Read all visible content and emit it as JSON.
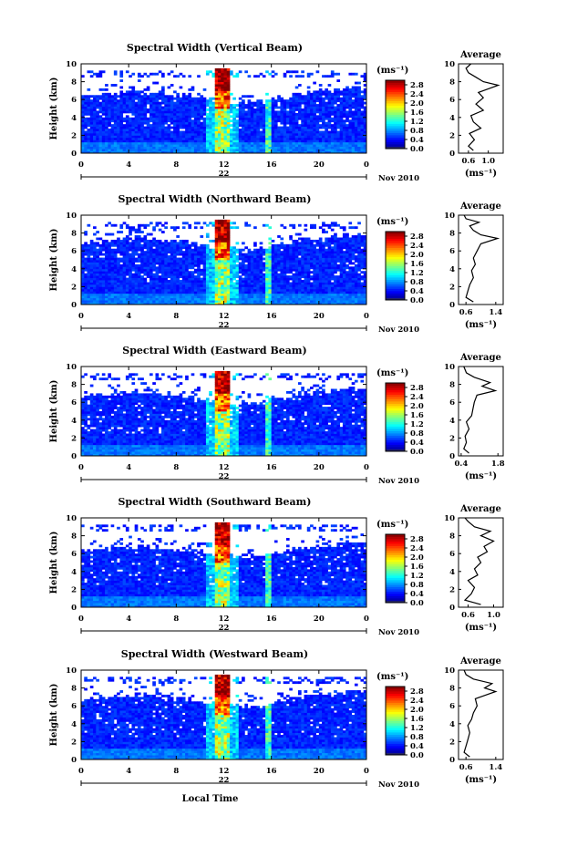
{
  "chart_data": [
    {
      "type": "heatmap",
      "title": "Spectral Width (Vertical Beam)",
      "ylabel": "Height (km)",
      "xlim": [
        0,
        24
      ],
      "ylim": [
        0,
        10
      ],
      "x_ticks": [
        "0",
        "4",
        "8",
        "12",
        "16",
        "20",
        "0"
      ],
      "y_ticks": [
        "0",
        "2",
        "4",
        "6",
        "8",
        "10"
      ],
      "date_label": "22",
      "month_label": "Nov 2010",
      "colorbar": {
        "unit": "(ms⁻¹)",
        "ticks": [
          "0.0",
          "0.4",
          "0.8",
          "1.2",
          "1.6",
          "2.0",
          "2.4",
          "2.8"
        ],
        "range": [
          0,
          3.0
        ]
      },
      "avg": {
        "title": "Average",
        "xlabel": "(ms⁻¹)",
        "x_ticks": [
          "0.6",
          "1.0"
        ],
        "xlim": [
          0.4,
          1.3
        ],
        "ylim": [
          0,
          10
        ],
        "y_ticks": [
          "0",
          "2",
          "4",
          "6",
          "8",
          "10"
        ],
        "profile": [
          [
            0.7,
            0.3
          ],
          [
            0.6,
            0.8
          ],
          [
            0.72,
            1.5
          ],
          [
            0.62,
            2.2
          ],
          [
            0.85,
            2.8
          ],
          [
            0.7,
            3.5
          ],
          [
            0.65,
            4.2
          ],
          [
            0.9,
            4.8
          ],
          [
            0.75,
            5.5
          ],
          [
            0.9,
            6.2
          ],
          [
            0.8,
            6.8
          ],
          [
            1.0,
            7.2
          ],
          [
            1.2,
            7.6
          ],
          [
            0.9,
            8.0
          ],
          [
            0.75,
            8.5
          ],
          [
            0.6,
            9.0
          ],
          [
            0.55,
            9.5
          ],
          [
            0.65,
            10
          ]
        ]
      }
    },
    {
      "type": "heatmap",
      "title": "Spectral Width (Northward Beam)",
      "ylabel": "Height (km)",
      "xlim": [
        0,
        24
      ],
      "ylim": [
        0,
        10
      ],
      "x_ticks": [
        "0",
        "4",
        "8",
        "12",
        "16",
        "20",
        "0"
      ],
      "y_ticks": [
        "0",
        "2",
        "4",
        "6",
        "8",
        "10"
      ],
      "date_label": "22",
      "month_label": "Nov 2010",
      "colorbar": {
        "unit": "(ms⁻¹)",
        "ticks": [
          "0.0",
          "0.4",
          "0.8",
          "1.2",
          "1.6",
          "2.0",
          "2.4",
          "2.8"
        ],
        "range": [
          0,
          3.0
        ]
      },
      "avg": {
        "title": "Average",
        "xlabel": "(ms⁻¹)",
        "x_ticks": [
          "0.6",
          "1.4"
        ],
        "xlim": [
          0.4,
          1.6
        ],
        "ylim": [
          0,
          10
        ],
        "y_ticks": [
          "0",
          "2",
          "4",
          "6",
          "8",
          "10"
        ],
        "profile": [
          [
            0.8,
            0.3
          ],
          [
            0.6,
            0.8
          ],
          [
            0.65,
            1.5
          ],
          [
            0.7,
            2.2
          ],
          [
            0.8,
            3.0
          ],
          [
            0.75,
            3.8
          ],
          [
            0.85,
            4.5
          ],
          [
            0.8,
            5.2
          ],
          [
            0.9,
            6.0
          ],
          [
            1.0,
            6.8
          ],
          [
            1.45,
            7.4
          ],
          [
            1.0,
            7.8
          ],
          [
            0.8,
            8.3
          ],
          [
            0.7,
            8.8
          ],
          [
            0.95,
            9.2
          ],
          [
            0.6,
            9.6
          ],
          [
            0.55,
            10
          ]
        ]
      }
    },
    {
      "type": "heatmap",
      "title": "Spectral Width (Eastward Beam)",
      "ylabel": "Height (km)",
      "xlim": [
        0,
        24
      ],
      "ylim": [
        0,
        10
      ],
      "x_ticks": [
        "0",
        "4",
        "8",
        "12",
        "16",
        "20",
        "0"
      ],
      "y_ticks": [
        "0",
        "2",
        "4",
        "6",
        "8",
        "10"
      ],
      "date_label": "22",
      "month_label": "Nov 2010",
      "colorbar": {
        "unit": "(ms⁻¹)",
        "ticks": [
          "0.0",
          "0.4",
          "0.8",
          "1.2",
          "1.6",
          "2.0",
          "2.4",
          "2.8"
        ],
        "range": [
          0,
          3.0
        ]
      },
      "avg": {
        "title": "Average",
        "xlabel": "(ms⁻¹)",
        "x_ticks": [
          "0.4",
          "1.8"
        ],
        "xlim": [
          0.3,
          2.0
        ],
        "ylim": [
          0,
          10
        ],
        "y_ticks": [
          "0",
          "2",
          "4",
          "6",
          "8",
          "10"
        ],
        "profile": [
          [
            0.7,
            0.3
          ],
          [
            0.5,
            0.8
          ],
          [
            0.6,
            1.5
          ],
          [
            0.55,
            2.2
          ],
          [
            0.7,
            3.0
          ],
          [
            0.6,
            3.8
          ],
          [
            0.8,
            4.5
          ],
          [
            0.85,
            5.3
          ],
          [
            0.9,
            6.0
          ],
          [
            1.0,
            6.8
          ],
          [
            1.7,
            7.3
          ],
          [
            1.2,
            7.8
          ],
          [
            1.5,
            8.2
          ],
          [
            0.9,
            8.8
          ],
          [
            0.6,
            9.3
          ],
          [
            0.5,
            10
          ]
        ]
      }
    },
    {
      "type": "heatmap",
      "title": "Spectral Width (Southward Beam)",
      "ylabel": "Height (km)",
      "xlim": [
        0,
        24
      ],
      "ylim": [
        0,
        10
      ],
      "x_ticks": [
        "0",
        "4",
        "8",
        "12",
        "16",
        "20",
        "0"
      ],
      "y_ticks": [
        "0",
        "2",
        "4",
        "6",
        "8",
        "10"
      ],
      "date_label": "22",
      "month_label": "Nov 2010",
      "colorbar": {
        "unit": "(ms⁻¹)",
        "ticks": [
          "0.0",
          "0.4",
          "0.8",
          "1.2",
          "1.6",
          "2.0",
          "2.4",
          "2.8"
        ],
        "range": [
          0,
          3.0
        ]
      },
      "avg": {
        "title": "Average",
        "xlabel": "(ms⁻¹)",
        "x_ticks": [
          "0.6",
          "1.0"
        ],
        "xlim": [
          0.45,
          1.15
        ],
        "ylim": [
          0,
          10
        ],
        "y_ticks": [
          "0",
          "2",
          "4",
          "6",
          "8",
          "10"
        ],
        "profile": [
          [
            0.8,
            0.3
          ],
          [
            0.55,
            0.8
          ],
          [
            0.65,
            1.5
          ],
          [
            0.7,
            2.2
          ],
          [
            0.6,
            3.0
          ],
          [
            0.75,
            3.6
          ],
          [
            0.7,
            4.3
          ],
          [
            0.8,
            5.0
          ],
          [
            0.75,
            5.6
          ],
          [
            0.9,
            6.2
          ],
          [
            0.85,
            6.8
          ],
          [
            1.0,
            7.4
          ],
          [
            0.8,
            8.0
          ],
          [
            0.95,
            8.5
          ],
          [
            0.7,
            9.0
          ],
          [
            0.6,
            9.6
          ],
          [
            0.55,
            10
          ]
        ]
      }
    },
    {
      "type": "heatmap",
      "title": "Spectral Width (Westward Beam)",
      "ylabel": "Height (km)",
      "xlim": [
        0,
        24
      ],
      "ylim": [
        0,
        10
      ],
      "x_ticks": [
        "0",
        "4",
        "8",
        "12",
        "16",
        "20",
        "0"
      ],
      "y_ticks": [
        "0",
        "2",
        "4",
        "6",
        "8",
        "10"
      ],
      "date_label": "22",
      "month_label": "Nov 2010",
      "xlabel": "Local Time",
      "colorbar": {
        "unit": "(ms⁻¹)",
        "ticks": [
          "0.0",
          "0.4",
          "0.8",
          "1.2",
          "1.6",
          "2.0",
          "2.4",
          "2.8"
        ],
        "range": [
          0,
          3.0
        ]
      },
      "avg": {
        "title": "Average",
        "xlabel": "(ms⁻¹)",
        "x_ticks": [
          "0.6",
          "1.4"
        ],
        "xlim": [
          0.4,
          1.6
        ],
        "ylim": [
          0,
          10
        ],
        "y_ticks": [
          "0",
          "2",
          "4",
          "6",
          "8",
          "10"
        ],
        "profile": [
          [
            0.7,
            0.3
          ],
          [
            0.55,
            0.8
          ],
          [
            0.6,
            1.5
          ],
          [
            0.65,
            2.2
          ],
          [
            0.7,
            3.0
          ],
          [
            0.65,
            3.8
          ],
          [
            0.75,
            4.5
          ],
          [
            0.8,
            5.2
          ],
          [
            0.9,
            6.0
          ],
          [
            0.85,
            6.8
          ],
          [
            1.4,
            7.6
          ],
          [
            1.1,
            8.0
          ],
          [
            1.3,
            8.5
          ],
          [
            0.8,
            9.0
          ],
          [
            0.6,
            9.5
          ],
          [
            0.55,
            10
          ]
        ]
      }
    }
  ]
}
